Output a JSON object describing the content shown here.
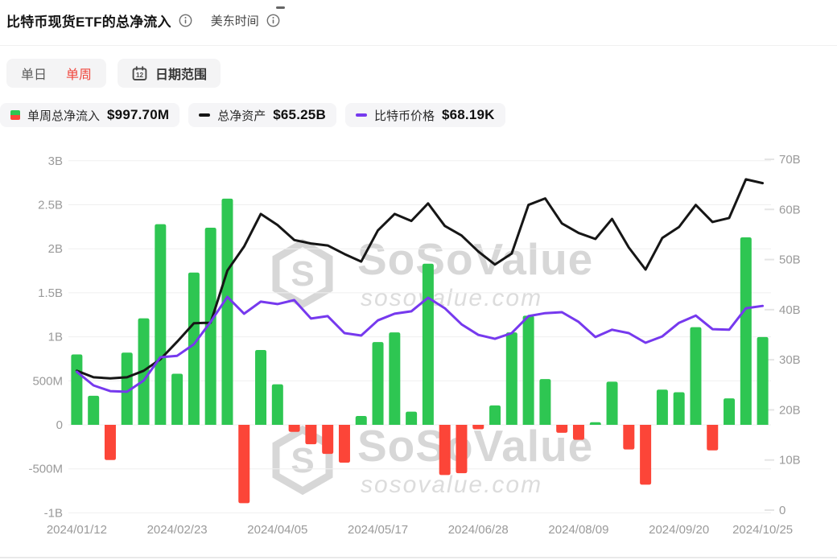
{
  "header": {
    "title": "比特币现货ETF的总净流入",
    "timezone": "美东时间"
  },
  "toolbar": {
    "daily_label": "单日",
    "weekly_label": "单周",
    "range_label": "日期范围",
    "calendar_day": "12"
  },
  "legend": {
    "items": [
      {
        "label": "单周总净流入",
        "value": "$997.70M",
        "icon": "inflow-bar-icon"
      },
      {
        "label": "总净资产",
        "value": "$65.25B",
        "icon": "assets-line-icon"
      },
      {
        "label": "比特币价格",
        "value": "$68.19K",
        "icon": "price-line-icon"
      }
    ]
  },
  "watermark": {
    "brand": "SoSoValue",
    "site": "sosovalue.com",
    "brand_initial": "S"
  },
  "colors": {
    "bar_positive": "#2ec652",
    "bar_negative": "#fc4538",
    "assets_line": "#161616",
    "price_line": "#7639ee",
    "accent_red": "#f0483f",
    "axis_text": "#9a9a9a",
    "grid": "#efefef"
  },
  "chart_data": {
    "type": "bar",
    "note": "combo chart: weekly net-inflow bars + total net assets line (right axis) + BTC price line (hidden axis)",
    "weeks": 42,
    "x_tick_labels": [
      "2024/01/12",
      "2024/02/23",
      "2024/04/05",
      "2024/05/17",
      "2024/06/28",
      "2024/08/09",
      "2024/09/20",
      "2024/10/25"
    ],
    "x_tick_indices": [
      0,
      6,
      12,
      18,
      24,
      30,
      36,
      41
    ],
    "bar_series": {
      "name": "单周总净流入",
      "unit": "USD millions",
      "values": [
        800,
        330,
        -400,
        820,
        1210,
        2280,
        580,
        1730,
        2240,
        2570,
        -890,
        850,
        460,
        -80,
        -220,
        -330,
        -430,
        100,
        940,
        1050,
        150,
        1830,
        -570,
        -550,
        -50,
        220,
        1050,
        1240,
        520,
        -90,
        -170,
        30,
        490,
        -280,
        -680,
        400,
        370,
        1110,
        -290,
        300,
        2130,
        997.7
      ]
    },
    "line_series": [
      {
        "name": "总净资产",
        "unit": "USD billions",
        "axis": "right",
        "values": [
          27.8,
          26.5,
          26.3,
          26.5,
          27.8,
          30.1,
          33.6,
          37.3,
          37.4,
          47.8,
          52.6,
          59.1,
          56.9,
          53.9,
          53.2,
          52.8,
          51.1,
          49.6,
          55.8,
          59.1,
          57.7,
          61.2,
          56.7,
          54.8,
          51.6,
          49.0,
          51.2,
          60.9,
          62.2,
          57.2,
          55.3,
          54.1,
          58.1,
          52.4,
          48.0,
          54.3,
          56.5,
          60.9,
          57.5,
          58.3,
          66.0,
          65.25
        ]
      },
      {
        "name": "比特币价格",
        "unit": "USD thousands",
        "axis": "hidden",
        "values": [
          46.4,
          41.9,
          40.0,
          39.8,
          43.5,
          51.2,
          51.7,
          55.5,
          62.9,
          71.2,
          65.6,
          69.6,
          68.8,
          70.1,
          64.0,
          64.8,
          59.2,
          58.4,
          63.4,
          65.6,
          66.4,
          70.9,
          67.4,
          62.1,
          58.6,
          57.3,
          59.2,
          64.8,
          65.8,
          66.1,
          62.9,
          57.9,
          60.3,
          59.2,
          56.0,
          58.1,
          62.6,
          65.0,
          60.5,
          60.3,
          67.4,
          68.19
        ]
      }
    ],
    "left_axis": {
      "tick_labels": [
        "3B",
        "2.5B",
        "2B",
        "1.5B",
        "1B",
        "500M",
        "0",
        "-500M",
        "-1B"
      ],
      "tick_values_m": [
        3000,
        2500,
        2000,
        1500,
        1000,
        500,
        0,
        -500,
        -1000
      ],
      "grid": true
    },
    "right_axis": {
      "tick_labels": [
        "70B",
        "60B",
        "50B",
        "40B",
        "30B",
        "20B",
        "10B",
        "0"
      ],
      "tick_values_b": [
        70,
        60,
        50,
        40,
        30,
        20,
        10,
        0
      ],
      "grid": false
    },
    "current_values": {
      "weekly_net_inflow": "$997.70M",
      "total_net_assets": "$65.25B",
      "btc_price": "$68.19K"
    }
  }
}
